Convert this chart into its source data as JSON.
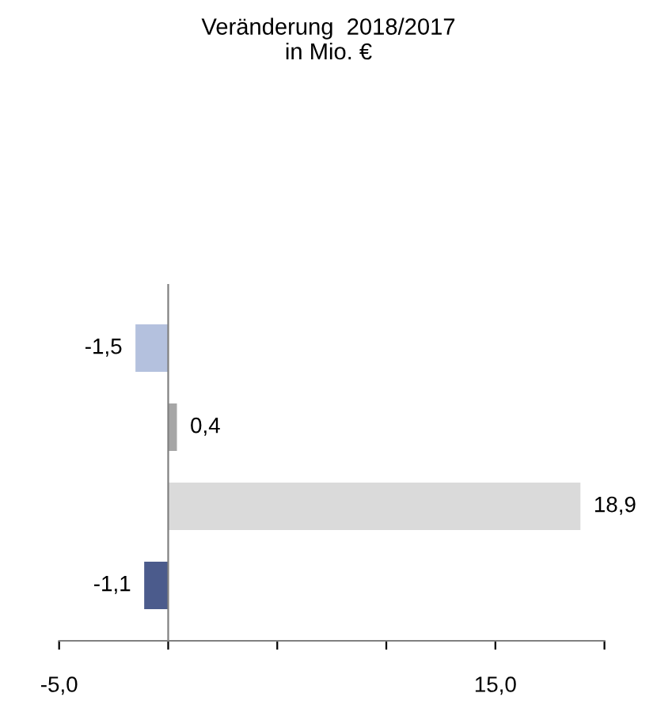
{
  "chart_data": {
    "type": "bar",
    "orientation": "horizontal",
    "title": "Veränderung  2018/2017\nin Mio. €",
    "categories": [
      null,
      null,
      null,
      null
    ],
    "values": [
      -1.5,
      0.4,
      18.9,
      -1.1
    ],
    "colors": [
      "#b4c1de",
      "#a6a6a6",
      "#dadada",
      "#4b5b8c"
    ],
    "value_labels": [
      "-1,5",
      "0,4",
      "18,9",
      "-1,1"
    ],
    "xlim": [
      -5,
      20
    ],
    "xticks": [
      {
        "value": -5,
        "label": "-5,0"
      },
      {
        "value": 0,
        "label": null
      },
      {
        "value": 5,
        "label": null
      },
      {
        "value": 10,
        "label": null
      },
      {
        "value": 15,
        "label": "15,0"
      },
      {
        "value": 20,
        "label": null
      }
    ],
    "tick_labels": "x",
    "legend": false
  }
}
